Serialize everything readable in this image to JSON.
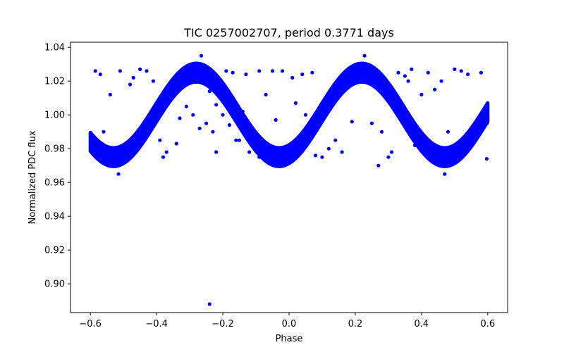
{
  "chart_data": {
    "type": "scatter",
    "title": "TIC 0257002707, period 0.3771 days",
    "xlabel": "Phase",
    "ylabel": "Normalized PDC flux",
    "xlim": [
      -0.66,
      0.66
    ],
    "ylim": [
      0.883,
      1.043
    ],
    "xticks": [
      -0.6,
      -0.4,
      -0.2,
      0.0,
      0.2,
      0.4,
      0.6
    ],
    "xtick_labels": [
      "−0.6",
      "−0.4",
      "−0.2",
      "0.0",
      "0.2",
      "0.4",
      "0.6"
    ],
    "yticks": [
      0.9,
      0.92,
      0.94,
      0.96,
      0.98,
      1.0,
      1.02,
      1.04
    ],
    "ytick_labels": [
      "0.90",
      "0.92",
      "0.94",
      "0.96",
      "0.98",
      "1.00",
      "1.02",
      "1.04"
    ],
    "grid": false,
    "series": [
      {
        "color": "#0000ff",
        "marker": "circle",
        "trend": {
          "phase_range": [
            -0.6,
            0.6
          ],
          "mean": 1.0,
          "amplitude": 0.025,
          "min_phases": [
            -0.53,
            -0.03,
            0.47
          ],
          "max_phases": [
            -0.28,
            0.22
          ]
        },
        "points": [
          [
            -0.597,
            0.985
          ],
          [
            -0.58,
            0.978
          ],
          [
            -0.55,
            0.972
          ],
          [
            -0.52,
            0.97
          ],
          [
            -0.5,
            0.972
          ],
          [
            -0.48,
            0.975
          ],
          [
            -0.45,
            0.982
          ],
          [
            -0.42,
            0.993
          ],
          [
            -0.4,
            1.0
          ],
          [
            -0.38,
            1.008
          ],
          [
            -0.35,
            1.017
          ],
          [
            -0.32,
            1.023
          ],
          [
            -0.3,
            1.025
          ],
          [
            -0.28,
            1.024
          ],
          [
            -0.26,
            1.02
          ],
          [
            -0.24,
            1.014
          ],
          [
            -0.22,
            1.006
          ],
          [
            -0.2,
            1.0
          ],
          [
            -0.18,
            0.994
          ],
          [
            -0.15,
            0.985
          ],
          [
            -0.12,
            0.978
          ],
          [
            -0.09,
            0.975
          ],
          [
            -0.06,
            0.974
          ],
          [
            -0.03,
            0.975
          ],
          [
            0.0,
            0.978
          ],
          [
            0.03,
            0.985
          ],
          [
            0.06,
            0.993
          ],
          [
            0.09,
            1.001
          ],
          [
            0.12,
            1.01
          ],
          [
            0.15,
            1.018
          ],
          [
            0.18,
            1.024
          ],
          [
            0.21,
            1.026
          ],
          [
            0.24,
            1.024
          ],
          [
            0.27,
            1.018
          ],
          [
            0.3,
            1.011
          ],
          [
            0.33,
            1.002
          ],
          [
            0.36,
            0.994
          ],
          [
            0.39,
            0.986
          ],
          [
            0.42,
            0.98
          ],
          [
            0.45,
            0.976
          ],
          [
            0.48,
            0.975
          ],
          [
            0.51,
            0.977
          ],
          [
            0.54,
            0.981
          ],
          [
            0.57,
            0.988
          ],
          [
            0.598,
            0.995
          ],
          [
            -0.585,
            1.026
          ],
          [
            -0.57,
            1.024
          ],
          [
            -0.54,
            1.012
          ],
          [
            -0.51,
            1.026
          ],
          [
            -0.47,
            1.022
          ],
          [
            -0.45,
            1.027
          ],
          [
            -0.43,
            1.026
          ],
          [
            -0.39,
            0.985
          ],
          [
            -0.37,
            0.978
          ],
          [
            -0.34,
            0.983
          ],
          [
            -0.31,
            1.005
          ],
          [
            -0.27,
            0.992
          ],
          [
            -0.25,
            0.995
          ],
          [
            -0.22,
            0.978
          ],
          [
            -0.19,
            1.026
          ],
          [
            -0.17,
            1.025
          ],
          [
            -0.14,
            1.002
          ],
          [
            -0.13,
            1.024
          ],
          [
            -0.11,
            0.99
          ],
          [
            -0.09,
            1.026
          ],
          [
            -0.07,
            1.012
          ],
          [
            -0.05,
            1.026
          ],
          [
            -0.04,
            0.997
          ],
          [
            -0.02,
            1.026
          ],
          [
            0.01,
            1.022
          ],
          [
            0.02,
            1.007
          ],
          [
            0.04,
            1.024
          ],
          [
            0.07,
            1.025
          ],
          [
            0.1,
            0.975
          ],
          [
            0.12,
            0.98
          ],
          [
            0.14,
            0.985
          ],
          [
            0.16,
            0.978
          ],
          [
            0.19,
            0.996
          ],
          [
            0.25,
            0.995
          ],
          [
            0.28,
            0.99
          ],
          [
            0.31,
            0.978
          ],
          [
            0.33,
            1.025
          ],
          [
            0.35,
            1.023
          ],
          [
            0.37,
            1.027
          ],
          [
            0.4,
            1.012
          ],
          [
            0.42,
            1.025
          ],
          [
            0.44,
            1.015
          ],
          [
            0.46,
            1.02
          ],
          [
            0.5,
            1.027
          ],
          [
            0.52,
            1.026
          ],
          [
            0.54,
            1.024
          ],
          [
            0.56,
            0.99
          ],
          [
            0.58,
            1.025
          ],
          [
            0.597,
            0.974
          ],
          [
            0.55,
            0.985
          ],
          [
            -0.56,
            0.99
          ],
          [
            -0.48,
            1.018
          ],
          [
            -0.41,
            1.02
          ],
          [
            -0.33,
            0.998
          ],
          [
            -0.29,
            1.0
          ],
          [
            -0.23,
            0.99
          ],
          [
            -0.16,
            0.985
          ],
          [
            0.05,
            1.0
          ],
          [
            0.08,
            0.976
          ],
          [
            0.27,
            0.97
          ],
          [
            0.3,
            0.975
          ],
          [
            0.38,
            0.982
          ],
          [
            0.48,
            0.99
          ],
          [
            0.36,
            1.02
          ],
          [
            -0.38,
            0.975
          ],
          [
            -0.515,
            0.965
          ],
          [
            0.47,
            0.965
          ],
          [
            0.228,
            1.035
          ],
          [
            -0.265,
            1.035
          ],
          [
            -0.24,
            0.888
          ]
        ]
      }
    ]
  }
}
